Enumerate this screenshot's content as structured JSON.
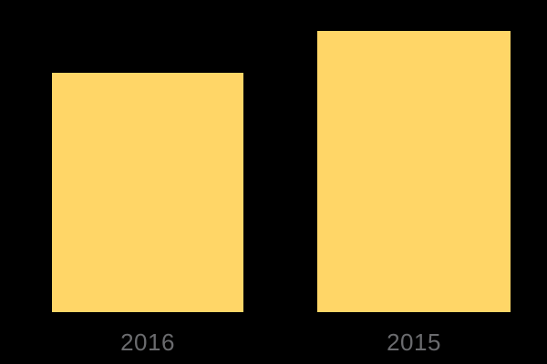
{
  "chart_data": {
    "type": "bar",
    "title": "",
    "xlabel": "",
    "ylabel": "",
    "categories": [
      "2016",
      "2015"
    ],
    "relative_values": [
      0.851,
      1.0
    ],
    "value_labels_shown": false,
    "axes_shown": false,
    "grid": false,
    "legend": "none",
    "bar_color": "#FFD667",
    "label_color": "#6A6B6E",
    "background_color": "#000000"
  }
}
